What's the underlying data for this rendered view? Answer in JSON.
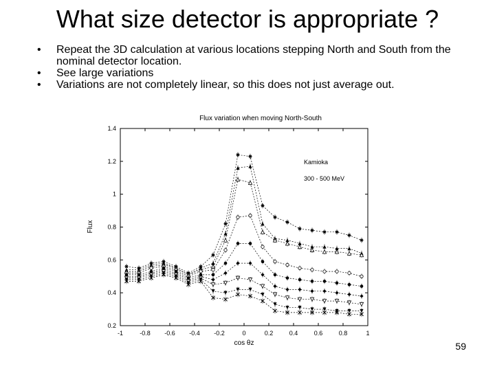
{
  "slide": {
    "title": "What size detector is appropriate ?",
    "bullets": [
      "Repeat the 3D calculation at various locations stepping North and South from the nominal detector location.",
      "See large variations",
      "Variations are not completely linear, so this does not just average out."
    ],
    "bullet_marker": "•",
    "page_number": "59"
  },
  "chart_data": {
    "type": "line",
    "title": "Flux variation when moving North-South",
    "xlabel": "cos θz",
    "ylabel": "Flux",
    "xlim": [
      -1,
      1
    ],
    "ylim": [
      0.2,
      1.4
    ],
    "xticks": [
      "-1",
      "-0.8",
      "-0.6",
      "-0.4",
      "-0.2",
      "0",
      "0.2",
      "0.4",
      "0.6",
      "0.8",
      "1"
    ],
    "yticks": [
      "0.2",
      "0.4",
      "0.6",
      "0.8",
      "1",
      "1.2",
      "1.4"
    ],
    "annotations": [
      "Kamioka",
      "300 - 500 MeV"
    ],
    "grid": false,
    "line_color": "#000000",
    "x": [
      -0.95,
      -0.85,
      -0.75,
      -0.65,
      -0.55,
      -0.45,
      -0.35,
      -0.25,
      -0.15,
      -0.05,
      0.05,
      0.15,
      0.25,
      0.35,
      0.45,
      0.55,
      0.65,
      0.75,
      0.85,
      0.95
    ],
    "series": [
      {
        "marker": "star",
        "values": [
          0.56,
          0.55,
          0.58,
          0.59,
          0.56,
          0.52,
          0.56,
          0.63,
          0.82,
          1.24,
          1.23,
          0.93,
          0.86,
          0.83,
          0.79,
          0.78,
          0.77,
          0.77,
          0.75,
          0.72
        ]
      },
      {
        "marker": "triangle",
        "values": [
          0.54,
          0.54,
          0.57,
          0.58,
          0.55,
          0.51,
          0.55,
          0.58,
          0.76,
          1.16,
          1.17,
          0.82,
          0.73,
          0.72,
          0.7,
          0.68,
          0.68,
          0.67,
          0.67,
          0.64
        ]
      },
      {
        "marker": "open-triangle",
        "values": [
          0.53,
          0.53,
          0.56,
          0.57,
          0.55,
          0.51,
          0.54,
          0.56,
          0.72,
          1.09,
          1.07,
          0.77,
          0.72,
          0.7,
          0.68,
          0.66,
          0.65,
          0.65,
          0.64,
          0.63
        ]
      },
      {
        "marker": "open-circle",
        "values": [
          0.52,
          0.52,
          0.55,
          0.56,
          0.54,
          0.5,
          0.53,
          0.54,
          0.66,
          0.86,
          0.87,
          0.68,
          0.59,
          0.57,
          0.55,
          0.54,
          0.53,
          0.53,
          0.52,
          0.5
        ]
      },
      {
        "marker": "circle",
        "values": [
          0.51,
          0.51,
          0.53,
          0.55,
          0.53,
          0.49,
          0.51,
          0.51,
          0.58,
          0.7,
          0.7,
          0.59,
          0.51,
          0.49,
          0.48,
          0.47,
          0.47,
          0.46,
          0.45,
          0.44
        ]
      },
      {
        "marker": "diamond",
        "values": [
          0.5,
          0.5,
          0.52,
          0.54,
          0.52,
          0.48,
          0.5,
          0.48,
          0.52,
          0.58,
          0.58,
          0.51,
          0.44,
          0.42,
          0.42,
          0.41,
          0.41,
          0.4,
          0.39,
          0.38
        ]
      },
      {
        "marker": "open-inv-triangle",
        "values": [
          0.49,
          0.49,
          0.51,
          0.53,
          0.51,
          0.47,
          0.49,
          0.45,
          0.46,
          0.49,
          0.48,
          0.44,
          0.39,
          0.37,
          0.36,
          0.36,
          0.35,
          0.35,
          0.34,
          0.33
        ]
      },
      {
        "marker": "inv-triangle",
        "values": [
          0.48,
          0.48,
          0.5,
          0.52,
          0.5,
          0.46,
          0.48,
          0.41,
          0.4,
          0.42,
          0.42,
          0.39,
          0.33,
          0.31,
          0.31,
          0.3,
          0.3,
          0.29,
          0.29,
          0.29
        ]
      },
      {
        "marker": "cross",
        "values": [
          0.47,
          0.47,
          0.49,
          0.51,
          0.49,
          0.45,
          0.47,
          0.37,
          0.36,
          0.39,
          0.38,
          0.35,
          0.29,
          0.28,
          0.28,
          0.28,
          0.28,
          0.28,
          0.27,
          0.27
        ]
      }
    ]
  }
}
